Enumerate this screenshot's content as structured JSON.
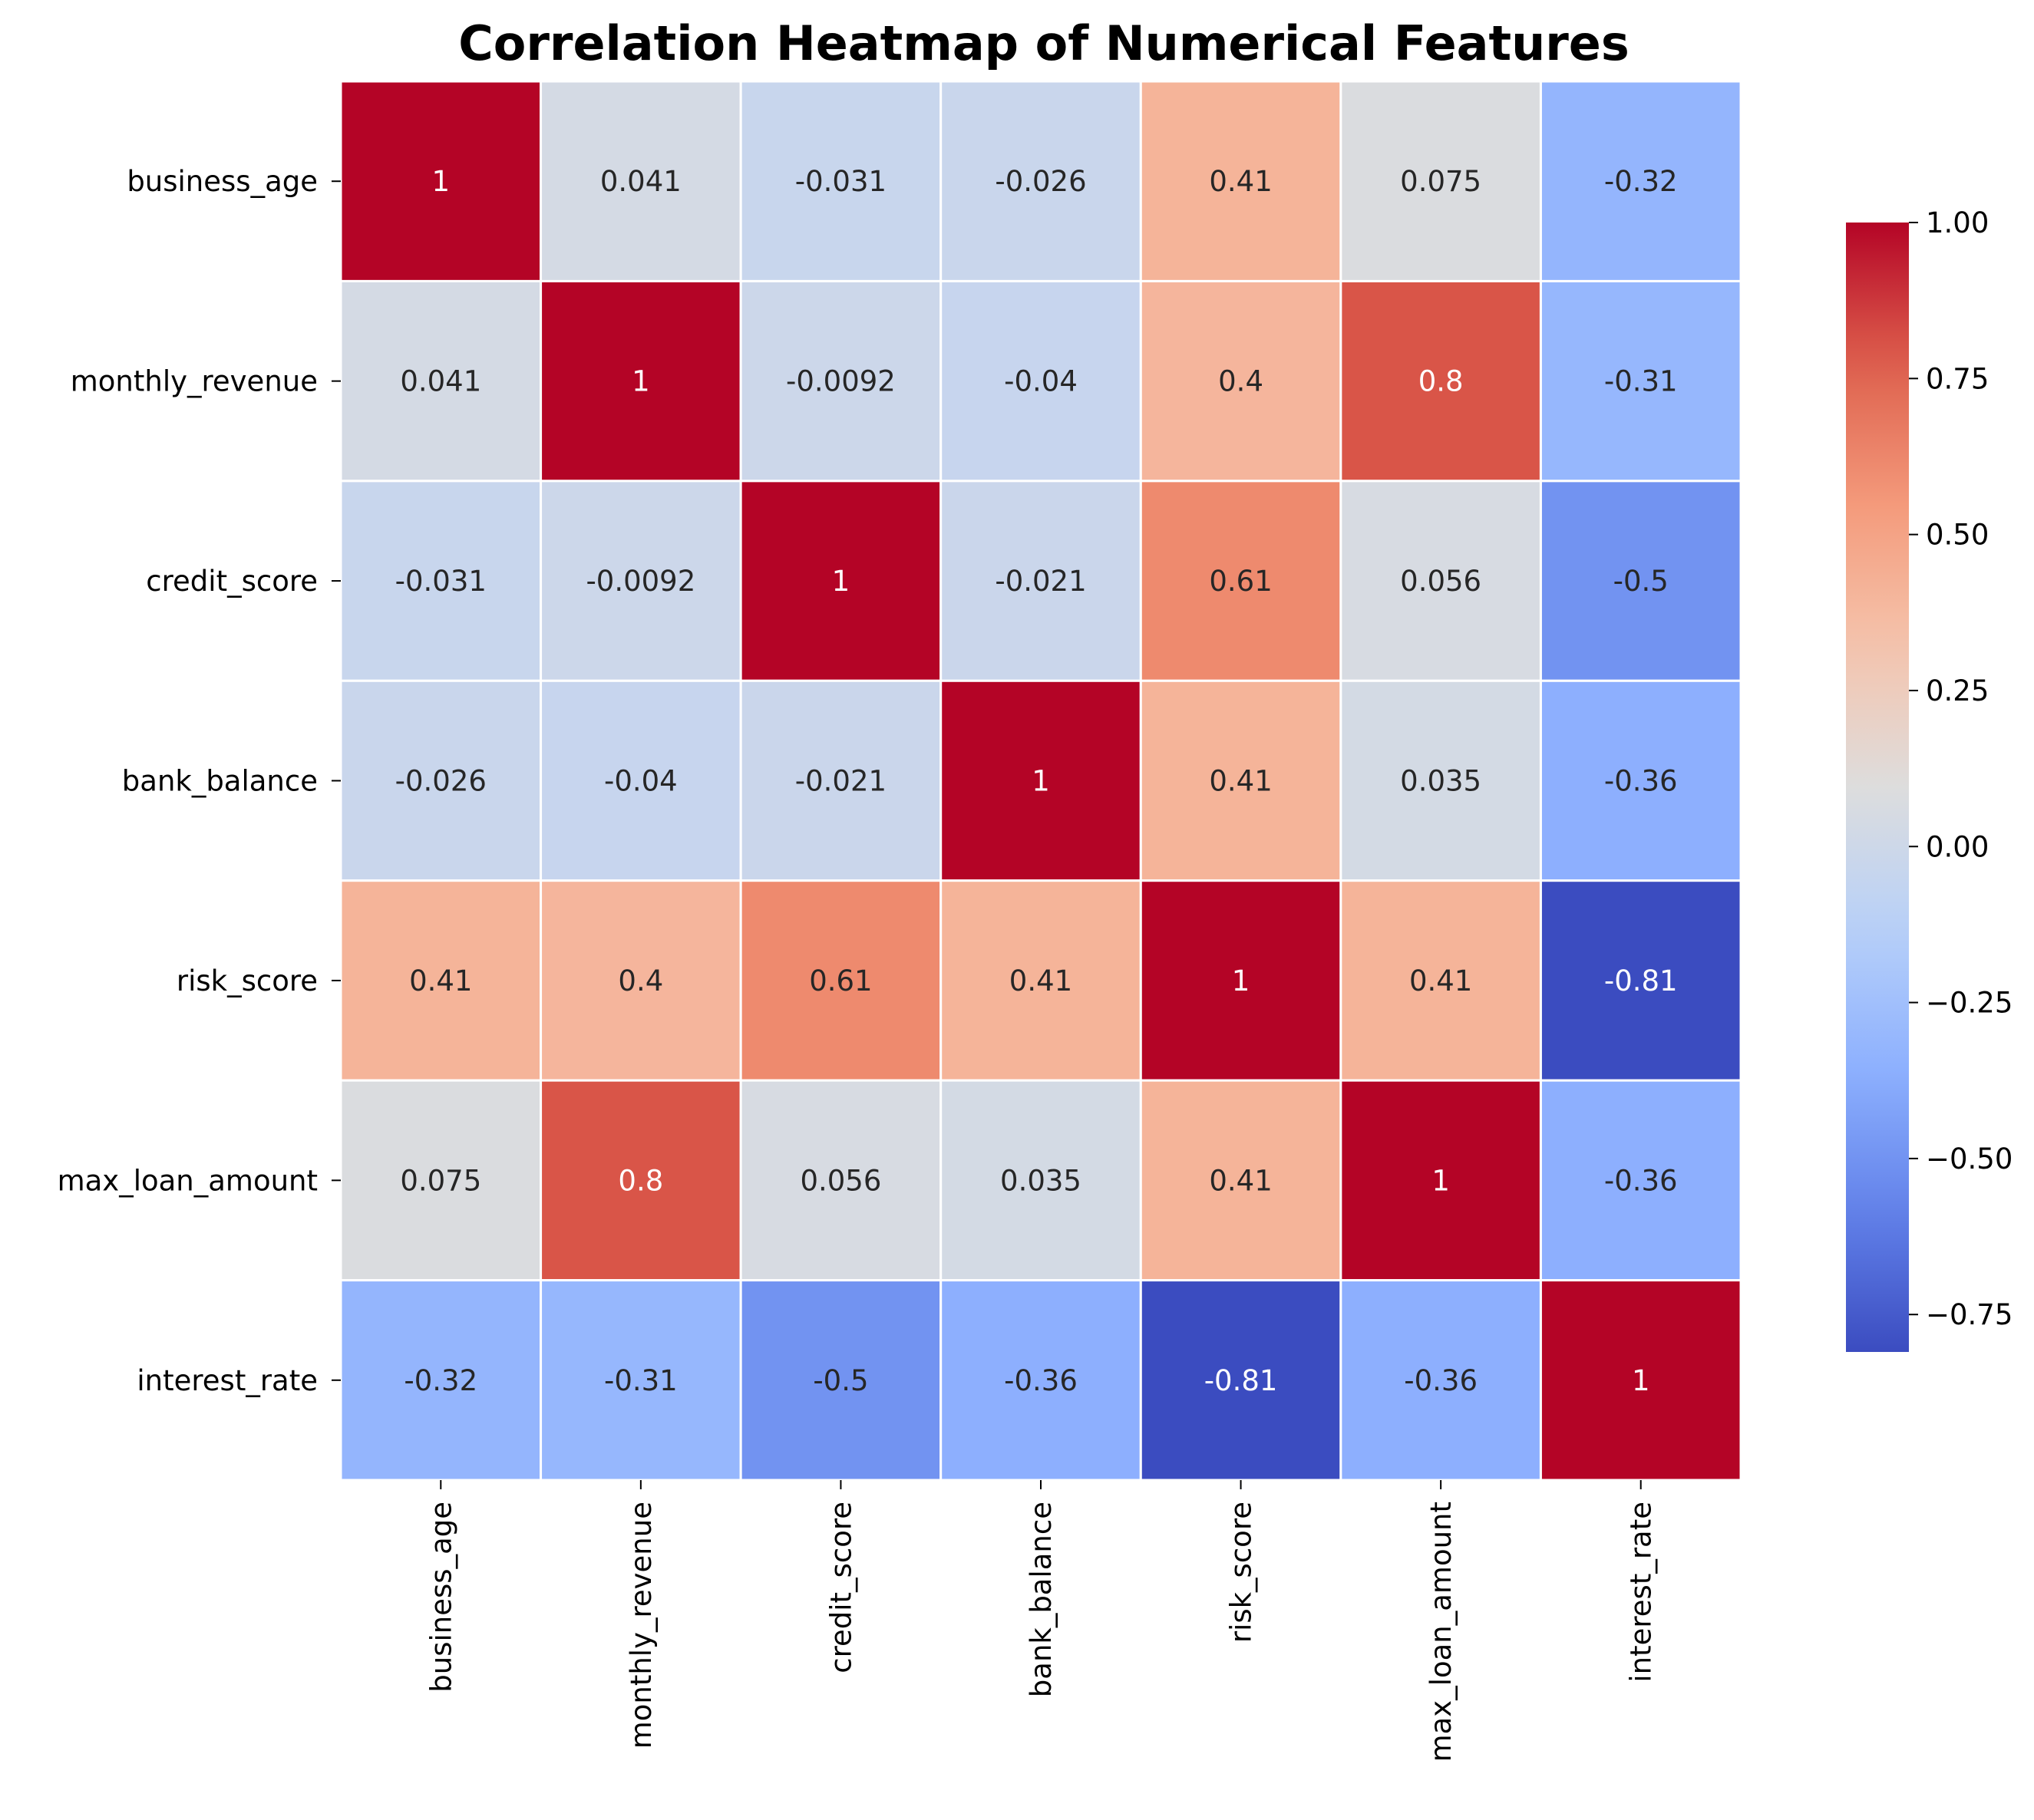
{
  "chart_data": {
    "type": "heatmap",
    "title": "Correlation Heatmap of Numerical Features",
    "xlabel": "",
    "ylabel": "",
    "variables": [
      "business_age",
      "monthly_revenue",
      "credit_score",
      "bank_balance",
      "risk_score",
      "max_loan_amount",
      "interest_rate"
    ],
    "matrix": [
      [
        1,
        0.041,
        -0.031,
        -0.026,
        0.41,
        0.075,
        -0.32
      ],
      [
        0.041,
        1,
        -0.0092,
        -0.04,
        0.4,
        0.8,
        -0.31
      ],
      [
        -0.031,
        -0.0092,
        1,
        -0.021,
        0.61,
        0.056,
        -0.5
      ],
      [
        -0.026,
        -0.04,
        -0.021,
        1,
        0.41,
        0.035,
        -0.36
      ],
      [
        0.41,
        0.4,
        0.61,
        0.41,
        1,
        0.41,
        -0.81
      ],
      [
        0.075,
        0.8,
        0.056,
        0.035,
        0.41,
        1,
        -0.36
      ],
      [
        -0.32,
        -0.31,
        -0.5,
        -0.36,
        -0.81,
        -0.36,
        1
      ]
    ],
    "cell_labels": [
      [
        "1",
        "0.041",
        "-0.031",
        "-0.026",
        "0.41",
        "0.075",
        "-0.32"
      ],
      [
        "0.041",
        "1",
        "-0.0092",
        "-0.04",
        "0.4",
        "0.8",
        "-0.31"
      ],
      [
        "-0.031",
        "-0.0092",
        "1",
        "-0.021",
        "0.61",
        "0.056",
        "-0.5"
      ],
      [
        "-0.026",
        "-0.04",
        "-0.021",
        "1",
        "0.41",
        "0.035",
        "-0.36"
      ],
      [
        "0.41",
        "0.4",
        "0.61",
        "0.41",
        "1",
        "0.41",
        "-0.81"
      ],
      [
        "0.075",
        "0.8",
        "0.056",
        "0.035",
        "0.41",
        "1",
        "-0.36"
      ],
      [
        "-0.32",
        "-0.31",
        "-0.5",
        "-0.36",
        "-0.81",
        "-0.36",
        "1"
      ]
    ],
    "colormap": "coolwarm",
    "color_range": [
      -0.81,
      1.0
    ],
    "colorbar": {
      "ticks": [
        1.0,
        0.75,
        0.5,
        0.25,
        0.0,
        -0.25,
        -0.5,
        -0.75
      ],
      "tick_labels": [
        "1.00",
        "0.75",
        "0.50",
        "0.25",
        "0.00",
        "−0.25",
        "−0.50",
        "−0.75"
      ],
      "placement": "right"
    },
    "grid": true
  }
}
